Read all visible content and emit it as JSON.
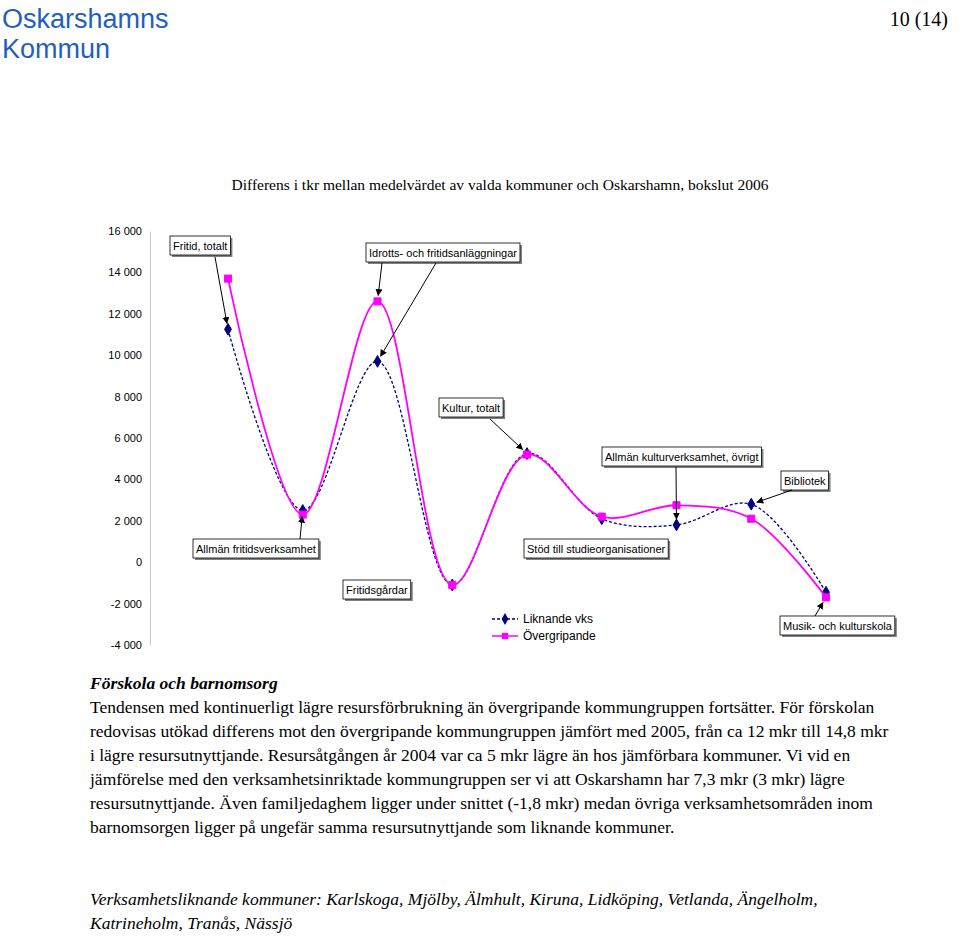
{
  "header": {
    "title": [
      "Oskarshamns",
      "Kommun"
    ],
    "page": "10 (14)"
  },
  "chart_data": {
    "type": "line",
    "title": "Differens i tkr mellan medelvärdet av valda kommuner och Oskarshamn, bokslut 2006",
    "categories": [
      "Fritid, totalt",
      "Allmän fritidsverksamhet",
      "Idrotts- och fritidsanläggningar",
      "Fritidsgårdar",
      "Kultur, totalt",
      "Stöd till studieorganisationer",
      "Allmän kulturverksamhet, övrigt",
      "Bibliotek",
      "Musik- och kulturskola"
    ],
    "series": [
      {
        "name": "Liknande vks",
        "color": "#000080",
        "marker": "diamond",
        "line_style": "dashed",
        "values": [
          11250,
          2500,
          9700,
          -1100,
          5250,
          2100,
          1800,
          2800,
          -1450
        ]
      },
      {
        "name": "Övergripande",
        "color": "#ff00ff",
        "marker": "square",
        "line_style": "solid",
        "values": [
          13700,
          2300,
          12600,
          -1100,
          5200,
          2200,
          2750,
          2100,
          -1700
        ]
      }
    ],
    "ylim": [
      -4000,
      16000
    ],
    "yticks": [
      {
        "value": -4000,
        "label": "-4 000"
      },
      {
        "value": -2000,
        "label": "-2 000"
      },
      0,
      {
        "value": 2000,
        "label": "2 000"
      },
      {
        "value": 4000,
        "label": "4 000"
      },
      {
        "value": 6000,
        "label": "6 000"
      },
      {
        "value": 8000,
        "label": "8 000"
      },
      {
        "value": 10000,
        "label": "10 000"
      },
      {
        "value": 12000,
        "label": "12 000"
      },
      {
        "value": 14000,
        "label": "14 000"
      },
      {
        "value": 16000,
        "label": "16 000"
      }
    ],
    "grid": false,
    "legend": "bottom",
    "tick_labels": "y"
  },
  "text": {
    "heading": "Förskola och barnomsorg",
    "paragraph": "Tendensen med kontinuerligt lägre resursförbrukning än övergripande kommungruppen fortsätter. För förskolan redovisas utökad differens mot den övergripande kommungruppen jämfört med 2005, från ca 12 mkr till 14,8 mkr i lägre resursutnyttjande. Resursåtgången år 2004 var ca 5 mkr lägre än hos jämförbara kommuner. Vi vid en jämförelse med den verksamhetsinriktade kommungruppen ser vi att Oskarshamn har 7,3 mkr (3 mkr) lägre resursutnyttjande. Även familjedaghem ligger under snittet (-1,8 mkr) medan övriga verksamhetsområden inom barnomsorgen ligger på ungefär samma resursutnyttjande som liknande kommuner.",
    "note": "Verksamhetsliknande kommuner: Karlskoga, Mjölby, Älmhult, Kiruna, Lidköping, Vetlanda, Ängelholm, Katrineholm, Tranås, Nässjö"
  }
}
